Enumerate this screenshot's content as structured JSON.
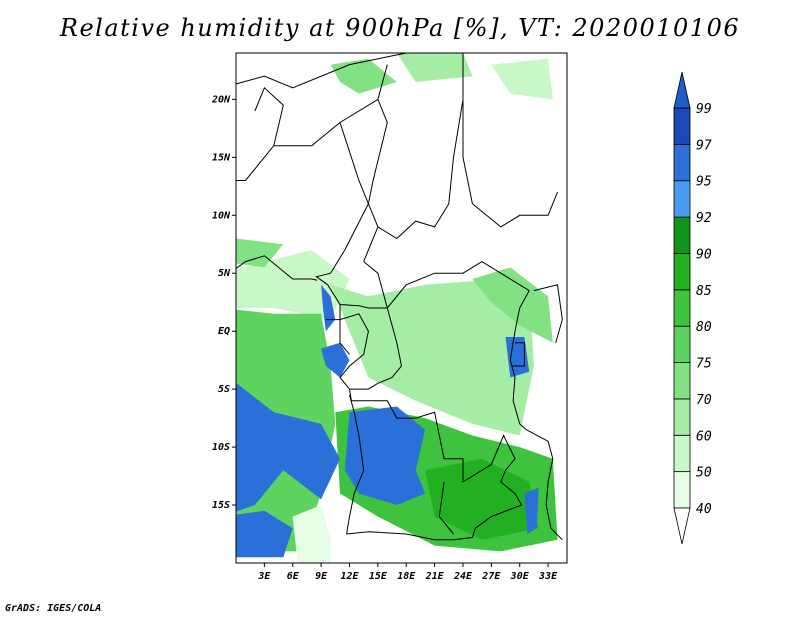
{
  "title": "Relative humidity at 900hPa [%], VT: 2020010106",
  "footer": "GrADS: IGES/COLA",
  "map": {
    "lon_range": [
      0,
      35
    ],
    "lat_range": [
      -20,
      24
    ],
    "lat_ticks": [
      {
        "value": 20,
        "label": "20N"
      },
      {
        "value": 15,
        "label": "15N"
      },
      {
        "value": 10,
        "label": "10N"
      },
      {
        "value": 5,
        "label": "5N"
      },
      {
        "value": 0,
        "label": "EQ"
      },
      {
        "value": -5,
        "label": "5S"
      },
      {
        "value": -10,
        "label": "10S"
      },
      {
        "value": -15,
        "label": "15S"
      }
    ],
    "lon_ticks": [
      {
        "value": 3,
        "label": "3E"
      },
      {
        "value": 6,
        "label": "6E"
      },
      {
        "value": 9,
        "label": "9E"
      },
      {
        "value": 12,
        "label": "12E"
      },
      {
        "value": 15,
        "label": "15E"
      },
      {
        "value": 18,
        "label": "18E"
      },
      {
        "value": 21,
        "label": "21E"
      },
      {
        "value": 24,
        "label": "24E"
      },
      {
        "value": 27,
        "label": "27E"
      },
      {
        "value": 30,
        "label": "30E"
      },
      {
        "value": 33,
        "label": "33E"
      }
    ]
  },
  "colorbar": {
    "levels": [
      {
        "label": "40",
        "color": "#ffffff"
      },
      {
        "label": "50",
        "color": "#e6fde6"
      },
      {
        "label": "60",
        "color": "#c8f7c8"
      },
      {
        "label": "70",
        "color": "#a5eda5"
      },
      {
        "label": "75",
        "color": "#82e182"
      },
      {
        "label": "80",
        "color": "#5fd35f"
      },
      {
        "label": "85",
        "color": "#3dc33d"
      },
      {
        "label": "90",
        "color": "#22b022"
      },
      {
        "label": "92",
        "color": "#10941a"
      },
      {
        "label": "95",
        "color": "#4a9cf0"
      },
      {
        "label": "97",
        "color": "#2a70d8"
      },
      {
        "label": "99",
        "color": "#1a4ab8"
      }
    ],
    "bottom_color": "#ffffff",
    "top_color": "#1d5fc8"
  },
  "regions": [
    {
      "level": 2,
      "polygon": [
        [
          -1.5,
          5
        ],
        [
          8,
          7
        ],
        [
          12,
          4.5
        ],
        [
          10,
          1
        ],
        [
          4,
          2
        ],
        [
          -1.5,
          2
        ]
      ]
    },
    {
      "level": 5,
      "polygon": [
        [
          -1.5,
          2
        ],
        [
          4,
          1.5
        ],
        [
          9,
          1.5
        ],
        [
          10,
          -3
        ],
        [
          10.5,
          -8
        ],
        [
          9,
          -14
        ],
        [
          7,
          -19
        ],
        [
          -1.5,
          -19
        ]
      ]
    },
    {
      "level": 3,
      "polygon": [
        [
          10,
          4
        ],
        [
          14,
          3
        ],
        [
          20,
          4
        ],
        [
          28,
          4.5
        ],
        [
          31,
          3.5
        ],
        [
          31.5,
          -3
        ],
        [
          30,
          -9
        ],
        [
          25,
          -8
        ],
        [
          19,
          -6
        ],
        [
          14,
          -4
        ],
        [
          12,
          0
        ]
      ]
    },
    {
      "level": 6,
      "polygon": [
        [
          10.5,
          -7
        ],
        [
          14,
          -6.5
        ],
        [
          20,
          -7.5
        ],
        [
          25,
          -9
        ],
        [
          30,
          -10
        ],
        [
          33.5,
          -11
        ],
        [
          34,
          -18
        ],
        [
          28,
          -19
        ],
        [
          21,
          -18.5
        ],
        [
          15,
          -16
        ],
        [
          11,
          -14
        ]
      ]
    },
    {
      "level": 7,
      "polygon": [
        [
          20,
          -12
        ],
        [
          26,
          -11
        ],
        [
          31,
          -13
        ],
        [
          32,
          -17
        ],
        [
          26,
          -18
        ],
        [
          21,
          -16
        ]
      ]
    },
    {
      "level": 10,
      "polygon": [
        [
          -1.5,
          -3.5
        ],
        [
          4,
          -7
        ],
        [
          9,
          -8
        ],
        [
          11,
          -11
        ],
        [
          9,
          -14.5
        ],
        [
          5,
          -12
        ],
        [
          2,
          -15
        ],
        [
          -1.5,
          -16
        ]
      ]
    },
    {
      "level": 10,
      "polygon": [
        [
          -1.5,
          -16
        ],
        [
          3,
          -15.5
        ],
        [
          6,
          -17
        ],
        [
          5,
          -19.5
        ],
        [
          -1.5,
          -19.5
        ]
      ]
    },
    {
      "level": 10,
      "polygon": [
        [
          12,
          -7
        ],
        [
          17,
          -6.5
        ],
        [
          20,
          -8.5
        ],
        [
          19,
          -12
        ],
        [
          20,
          -14
        ],
        [
          17,
          -15
        ],
        [
          13,
          -14
        ],
        [
          11.5,
          -12
        ]
      ]
    },
    {
      "level": 10,
      "polygon": [
        [
          9,
          4
        ],
        [
          10,
          3
        ],
        [
          10.5,
          1
        ],
        [
          9.5,
          0
        ],
        [
          9.2,
          2
        ]
      ]
    },
    {
      "level": 10,
      "polygon": [
        [
          9,
          -1.5
        ],
        [
          11,
          -1
        ],
        [
          12,
          -2.5
        ],
        [
          11,
          -4
        ],
        [
          9.5,
          -3
        ]
      ]
    },
    {
      "level": 10,
      "polygon": [
        [
          28.5,
          -0.5
        ],
        [
          30.5,
          -0.5
        ],
        [
          31,
          -3.5
        ],
        [
          29,
          -4
        ]
      ]
    },
    {
      "level": 10,
      "polygon": [
        [
          30.5,
          -14
        ],
        [
          32,
          -13.5
        ],
        [
          31.8,
          -17
        ],
        [
          30.8,
          -17.5
        ]
      ]
    },
    {
      "level": 1,
      "polygon": [
        [
          6,
          -16
        ],
        [
          9,
          -15
        ],
        [
          10,
          -18
        ],
        [
          10,
          -20
        ],
        [
          6.5,
          -20
        ]
      ]
    },
    {
      "level": 4,
      "polygon": [
        [
          10,
          23
        ],
        [
          14,
          23.5
        ],
        [
          17,
          21.5
        ],
        [
          13,
          20.5
        ],
        [
          11,
          21.5
        ]
      ]
    },
    {
      "level": 4,
      "polygon": [
        [
          -1.5,
          6
        ],
        [
          3,
          5.5
        ],
        [
          5,
          7.5
        ],
        [
          0,
          8
        ]
      ]
    },
    {
      "level": 4,
      "polygon": [
        [
          25,
          4.5
        ],
        [
          29,
          5.5
        ],
        [
          33,
          3
        ],
        [
          33.5,
          -1
        ],
        [
          30,
          0.5
        ],
        [
          27,
          2.5
        ]
      ]
    },
    {
      "level": 3,
      "polygon": [
        [
          17,
          24
        ],
        [
          24,
          24
        ],
        [
          25,
          22
        ],
        [
          19,
          21.5
        ]
      ]
    },
    {
      "level": 2,
      "polygon": [
        [
          27,
          23
        ],
        [
          33,
          23.5
        ],
        [
          33.5,
          20
        ],
        [
          29,
          20.5
        ]
      ]
    }
  ],
  "borders": [
    [
      [
        -1.5,
        21
      ],
      [
        3,
        22
      ],
      [
        6,
        21
      ],
      [
        12,
        23
      ],
      [
        18,
        24
      ]
    ],
    [
      [
        2,
        19
      ],
      [
        3,
        21
      ],
      [
        5,
        19.5
      ],
      [
        4,
        16
      ],
      [
        1,
        13
      ],
      [
        -1.5,
        13
      ]
    ],
    [
      [
        4,
        16
      ],
      [
        8,
        16
      ],
      [
        11,
        18
      ],
      [
        15,
        20
      ],
      [
        16,
        23
      ]
    ],
    [
      [
        15,
        20
      ],
      [
        16,
        18
      ],
      [
        14.5,
        13
      ],
      [
        14,
        11
      ],
      [
        15,
        9
      ],
      [
        14,
        7
      ],
      [
        13.5,
        6
      ]
    ],
    [
      [
        11,
        18
      ],
      [
        13,
        13
      ],
      [
        14,
        11
      ],
      [
        11.5,
        7
      ],
      [
        10,
        5
      ],
      [
        8.5,
        4.7
      ],
      [
        9.7,
        4
      ]
    ],
    [
      [
        24,
        20
      ],
      [
        24,
        22
      ],
      [
        24,
        24
      ]
    ],
    [
      [
        24,
        20
      ],
      [
        23,
        15
      ],
      [
        22.5,
        11
      ],
      [
        21,
        9
      ],
      [
        19,
        9.5
      ],
      [
        17,
        8
      ],
      [
        15,
        9
      ]
    ],
    [
      [
        24,
        20
      ],
      [
        24,
        15
      ],
      [
        25,
        11
      ],
      [
        28,
        9
      ],
      [
        30,
        10
      ],
      [
        33,
        10
      ],
      [
        34,
        12
      ]
    ],
    [
      [
        24,
        24
      ],
      [
        33.5,
        24
      ]
    ],
    [
      [
        13.5,
        6
      ],
      [
        15,
        5
      ],
      [
        16,
        2
      ],
      [
        18,
        4
      ],
      [
        21,
        5
      ],
      [
        24,
        5
      ],
      [
        26,
        6
      ],
      [
        28,
        5
      ],
      [
        30,
        4
      ],
      [
        31,
        3.5
      ]
    ],
    [
      [
        9.7,
        4
      ],
      [
        11,
        2.3
      ],
      [
        13,
        2.2
      ],
      [
        14,
        2
      ],
      [
        16,
        2
      ]
    ],
    [
      [
        11,
        2.3
      ],
      [
        11,
        1
      ],
      [
        9.5,
        1
      ]
    ],
    [
      [
        11,
        1
      ],
      [
        13,
        1.5
      ],
      [
        14,
        0
      ],
      [
        13.5,
        -2
      ],
      [
        12,
        -3
      ],
      [
        11,
        -4
      ],
      [
        12,
        -5
      ]
    ],
    [
      [
        16,
        2
      ],
      [
        17,
        -1
      ],
      [
        17.5,
        -3
      ],
      [
        16.5,
        -4
      ],
      [
        15,
        -4.5
      ],
      [
        14,
        -5
      ],
      [
        12,
        -5
      ],
      [
        12.2,
        -6
      ]
    ],
    [
      [
        31,
        3.5
      ],
      [
        30,
        2
      ],
      [
        29.5,
        0
      ],
      [
        29.2,
        -1.5
      ],
      [
        29,
        -2.5
      ],
      [
        29.5,
        -4
      ],
      [
        29.3,
        -6
      ],
      [
        30,
        -8
      ],
      [
        30.7,
        -8.5
      ]
    ],
    [
      [
        30.7,
        -8.5
      ],
      [
        33,
        -9.5
      ],
      [
        33.5,
        -11
      ],
      [
        33,
        -13
      ],
      [
        32.8,
        -15
      ],
      [
        33.3,
        -17
      ],
      [
        34.5,
        -18
      ]
    ],
    [
      [
        12.2,
        -6
      ],
      [
        13,
        -6
      ],
      [
        16,
        -6
      ],
      [
        17,
        -7.5
      ],
      [
        19,
        -7.5
      ],
      [
        21,
        -7
      ],
      [
        21.5,
        -9
      ],
      [
        22,
        -11
      ],
      [
        24,
        -11
      ],
      [
        24,
        -13
      ],
      [
        26,
        -12
      ],
      [
        27,
        -11.5
      ],
      [
        28.3,
        -9
      ],
      [
        29.5,
        -11
      ],
      [
        28.5,
        -12
      ],
      [
        28,
        -13
      ],
      [
        29.5,
        -14
      ],
      [
        30.2,
        -15
      ]
    ],
    [
      [
        12,
        -5.5
      ],
      [
        12.5,
        -7
      ],
      [
        13,
        -9
      ],
      [
        13.5,
        -12
      ],
      [
        12.5,
        -14
      ],
      [
        12,
        -16
      ],
      [
        11.7,
        -17.5
      ]
    ],
    [
      [
        11.7,
        -17.5
      ],
      [
        14,
        -17.3
      ],
      [
        18,
        -17.5
      ],
      [
        21,
        -18
      ],
      [
        23,
        -18
      ],
      [
        25,
        -17.8
      ],
      [
        25.3,
        -17
      ]
    ],
    [
      [
        22,
        -13
      ],
      [
        21.5,
        -16
      ],
      [
        23,
        -17.5
      ]
    ],
    [
      [
        30.2,
        -15
      ],
      [
        27,
        -16
      ],
      [
        25.3,
        -17
      ]
    ],
    [
      [
        -1.5,
        4.5
      ],
      [
        1,
        6
      ],
      [
        3,
        6.5
      ],
      [
        6,
        4.5
      ],
      [
        8,
        4.5
      ],
      [
        8.6,
        4.4
      ]
    ],
    [
      [
        11,
        2
      ],
      [
        11,
        -1
      ],
      [
        12,
        -2
      ]
    ],
    [
      [
        29.5,
        -1
      ],
      [
        30.5,
        -1
      ],
      [
        30.5,
        -3
      ],
      [
        29.2,
        -3
      ]
    ],
    [
      [
        31.5,
        3.5
      ],
      [
        34,
        4
      ],
      [
        34.5,
        1
      ],
      [
        33.8,
        -1
      ]
    ]
  ]
}
